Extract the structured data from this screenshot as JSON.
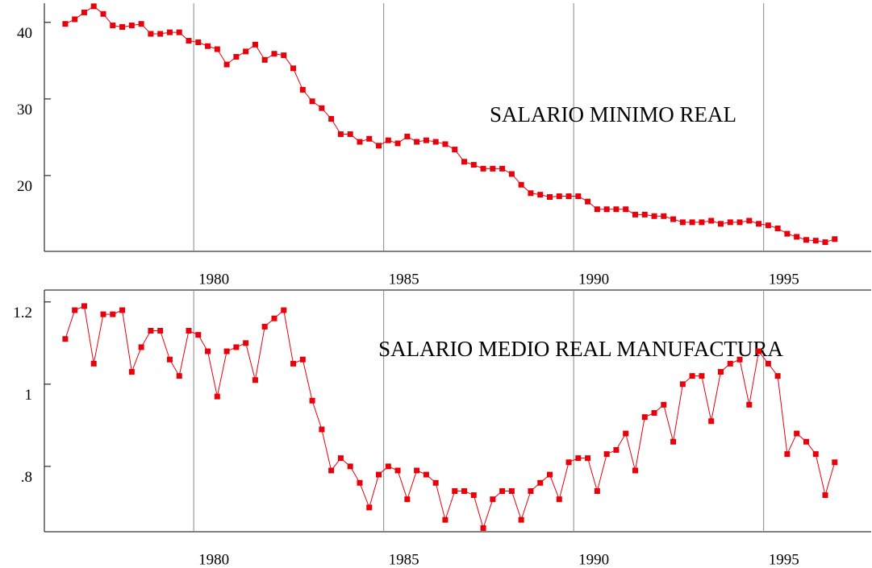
{
  "chart_data": [
    {
      "type": "line",
      "annotation": "SALARIO MINIMO REAL",
      "color": "#e8000b",
      "x": [
        1976.62,
        1976.87,
        1977.12,
        1977.37,
        1977.62,
        1977.87,
        1978.12,
        1978.37,
        1978.62,
        1978.87,
        1979.12,
        1979.37,
        1979.62,
        1979.87,
        1980.12,
        1980.37,
        1980.62,
        1980.87,
        1981.12,
        1981.37,
        1981.62,
        1981.87,
        1982.12,
        1982.37,
        1982.62,
        1982.87,
        1983.12,
        1983.37,
        1983.62,
        1983.87,
        1984.12,
        1984.37,
        1984.62,
        1984.87,
        1985.12,
        1985.37,
        1985.62,
        1985.87,
        1986.12,
        1986.37,
        1986.62,
        1986.87,
        1987.12,
        1987.37,
        1987.62,
        1987.87,
        1988.12,
        1988.37,
        1988.62,
        1988.87,
        1989.12,
        1989.37,
        1989.62,
        1989.87,
        1990.12,
        1990.37,
        1990.62,
        1990.87,
        1991.12,
        1991.37,
        1991.62,
        1991.87,
        1992.12,
        1992.37,
        1992.62,
        1992.87,
        1993.12,
        1993.37,
        1993.62,
        1993.87,
        1994.12,
        1994.37,
        1994.62,
        1994.87,
        1995.12,
        1995.37,
        1995.62,
        1995.87,
        1996.12,
        1996.37,
        1996.62,
        1996.87
      ],
      "values": [
        39.8,
        40.4,
        41.3,
        42.1,
        41.1,
        39.6,
        39.4,
        39.6,
        39.8,
        38.5,
        38.5,
        38.7,
        38.7,
        37.6,
        37.4,
        36.9,
        36.5,
        34.5,
        35.5,
        36.2,
        37.1,
        35.1,
        35.9,
        35.7,
        34.0,
        31.2,
        29.7,
        28.8,
        27.4,
        25.4,
        25.4,
        24.4,
        24.8,
        23.9,
        24.6,
        24.2,
        25.1,
        24.4,
        24.6,
        24.4,
        24.1,
        23.4,
        21.8,
        21.4,
        20.9,
        20.9,
        20.9,
        20.2,
        18.8,
        17.7,
        17.5,
        17.2,
        17.3,
        17.3,
        17.3,
        16.6,
        15.6,
        15.6,
        15.6,
        15.6,
        14.9,
        14.9,
        14.7,
        14.7,
        14.3,
        13.9,
        13.9,
        13.9,
        14.1,
        13.7,
        13.9,
        13.9,
        14.1,
        13.7,
        13.5,
        13.1,
        12.4,
        12.0,
        11.6,
        11.5,
        11.3,
        11.7
      ],
      "xlim": [
        1976.07,
        1997.83
      ],
      "xticks": [
        1980,
        1985,
        1990,
        1995
      ],
      "ylim": [
        10.1,
        42.5
      ],
      "yticks": [
        20,
        30,
        40
      ],
      "grid": true
    },
    {
      "type": "line",
      "annotation": "SALARIO MEDIO REAL MANUFACTURA",
      "color": "#e8000b",
      "x": [
        1976.62,
        1976.87,
        1977.12,
        1977.37,
        1977.62,
        1977.87,
        1978.12,
        1978.37,
        1978.62,
        1978.87,
        1979.12,
        1979.37,
        1979.62,
        1979.87,
        1980.12,
        1980.37,
        1980.62,
        1980.87,
        1981.12,
        1981.37,
        1981.62,
        1981.87,
        1982.12,
        1982.37,
        1982.62,
        1982.87,
        1983.12,
        1983.37,
        1983.62,
        1983.87,
        1984.12,
        1984.37,
        1984.62,
        1984.87,
        1985.12,
        1985.37,
        1985.62,
        1985.87,
        1986.12,
        1986.37,
        1986.62,
        1986.87,
        1987.12,
        1987.37,
        1987.62,
        1987.87,
        1988.12,
        1988.37,
        1988.62,
        1988.87,
        1989.12,
        1989.37,
        1989.62,
        1989.87,
        1990.12,
        1990.37,
        1990.62,
        1990.87,
        1991.12,
        1991.37,
        1991.62,
        1991.87,
        1992.12,
        1992.37,
        1992.62,
        1992.87,
        1993.12,
        1993.37,
        1993.62,
        1993.87,
        1994.12,
        1994.37,
        1994.62,
        1994.87,
        1995.12,
        1995.37,
        1995.62,
        1995.87,
        1996.12,
        1996.37,
        1996.62,
        1996.87
      ],
      "values": [
        1.11,
        1.18,
        1.19,
        1.05,
        1.17,
        1.17,
        1.18,
        1.03,
        1.09,
        1.13,
        1.13,
        1.06,
        1.02,
        1.13,
        1.12,
        1.08,
        0.97,
        1.08,
        1.09,
        1.1,
        1.01,
        1.14,
        1.16,
        1.18,
        1.05,
        1.06,
        0.96,
        0.89,
        0.79,
        0.82,
        0.8,
        0.76,
        0.7,
        0.78,
        0.8,
        0.79,
        0.72,
        0.79,
        0.78,
        0.76,
        0.67,
        0.74,
        0.74,
        0.73,
        0.65,
        0.72,
        0.74,
        0.74,
        0.67,
        0.74,
        0.76,
        0.78,
        0.72,
        0.81,
        0.82,
        0.82,
        0.74,
        0.83,
        0.84,
        0.88,
        0.79,
        0.92,
        0.93,
        0.95,
        0.86,
        1.0,
        1.02,
        1.02,
        0.91,
        1.03,
        1.05,
        1.06,
        0.95,
        1.08,
        1.05,
        1.02,
        0.83,
        0.88,
        0.86,
        0.83,
        0.73,
        0.81
      ],
      "xlim": [
        1976.07,
        1997.83
      ],
      "xticks": [
        1980,
        1985,
        1990,
        1995
      ],
      "ylim": [
        0.641,
        1.229
      ],
      "yticks": [
        {
          "value": 0.8,
          "label": ".8"
        },
        1,
        1.2
      ],
      "grid": true
    }
  ]
}
